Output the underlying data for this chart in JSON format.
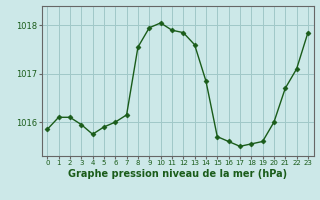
{
  "x": [
    0,
    1,
    2,
    3,
    4,
    5,
    6,
    7,
    8,
    9,
    10,
    11,
    12,
    13,
    14,
    15,
    16,
    17,
    18,
    19,
    20,
    21,
    22,
    23
  ],
  "y": [
    1015.85,
    1016.1,
    1016.1,
    1015.95,
    1015.75,
    1015.9,
    1016.0,
    1016.15,
    1017.55,
    1017.95,
    1018.05,
    1017.9,
    1017.85,
    1017.6,
    1016.85,
    1015.7,
    1015.6,
    1015.5,
    1015.55,
    1015.6,
    1016.0,
    1016.7,
    1017.1,
    1017.85
  ],
  "line_color": "#1a5c1a",
  "marker": "D",
  "marker_size": 2.5,
  "bg_color": "#cce8e8",
  "grid_color": "#a0c8c8",
  "xlabel": "Graphe pression niveau de la mer (hPa)",
  "xlabel_fontsize": 7,
  "yticks": [
    1016,
    1017,
    1018
  ],
  "ylim": [
    1015.3,
    1018.4
  ],
  "xlim": [
    -0.5,
    23.5
  ],
  "tick_color": "#1a5c1a",
  "tick_fontsize": 6,
  "xtick_fontsize": 5,
  "border_color": "#666666"
}
